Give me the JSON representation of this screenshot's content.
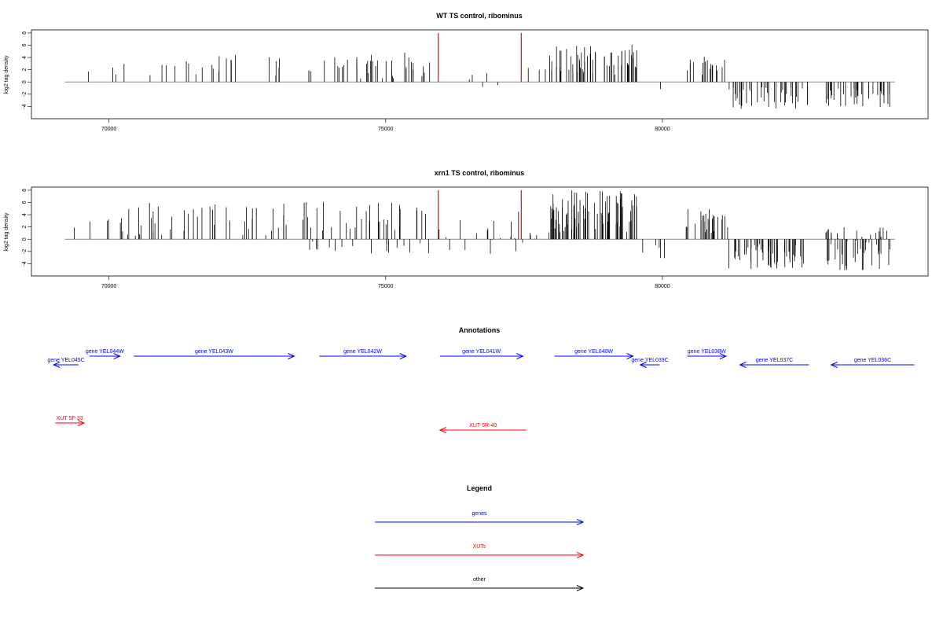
{
  "chart_data": [
    {
      "type": "bar",
      "title": "WT TS control, ribominus",
      "xlabel": "",
      "ylabel": "log2 tag density",
      "xlim": [
        68600,
        84800
      ],
      "ylim": [
        -6,
        8.5
      ],
      "x_ticks": [
        70000,
        75000,
        80000
      ],
      "x_tick_labels": [
        "70000",
        "75000",
        "80000"
      ],
      "y_ticks": [
        8,
        6,
        4,
        2,
        0,
        -2,
        -4
      ],
      "y_tick_labels": [
        "8",
        "6",
        "4",
        "2",
        "0",
        "-2",
        "-4"
      ],
      "baseline": {
        "from": 69200,
        "to": 84200,
        "value": 0
      },
      "markers": [
        {
          "x": 75950,
          "value": 8,
          "color": "#ff0000"
        },
        {
          "x": 77450,
          "value": 8,
          "color": "#ff0000"
        }
      ],
      "bar_color": "#000000",
      "segments": [
        {
          "from": 69300,
          "to": 69800,
          "density": 0.012,
          "min": -2,
          "max": 5
        },
        {
          "from": 69800,
          "to": 71200,
          "density": 0.025,
          "min": 0.5,
          "max": 3.5
        },
        {
          "from": 71200,
          "to": 73350,
          "density": 0.04,
          "min": 0.5,
          "max": 4.5
        },
        {
          "from": 73600,
          "to": 75800,
          "density": 0.09,
          "min": 0.5,
          "max": 4.8
        },
        {
          "from": 75800,
          "to": 77950,
          "density": 0.018,
          "min": -2.2,
          "max": 2.8
        },
        {
          "from": 77950,
          "to": 79550,
          "density": 0.18,
          "min": 1,
          "max": 6.2
        },
        {
          "from": 79650,
          "to": 80000,
          "density": 0.01,
          "min": -2.4,
          "max": -0.8
        },
        {
          "from": 80420,
          "to": 81130,
          "density": 0.12,
          "min": 1,
          "max": 4.2
        },
        {
          "from": 81200,
          "to": 82650,
          "density": 0.14,
          "min": -4.4,
          "max": -0.8
        },
        {
          "from": 82950,
          "to": 84150,
          "density": 0.14,
          "min": -4.2,
          "max": -0.8
        }
      ]
    },
    {
      "type": "bar",
      "title": "xrn1 TS control, ribominus",
      "xlabel": "",
      "ylabel": "log2 tag density",
      "xlim": [
        68600,
        84800
      ],
      "ylim": [
        -6,
        8.5
      ],
      "x_ticks": [
        70000,
        75000,
        80000
      ],
      "x_tick_labels": [
        "70000",
        "75000",
        "80000"
      ],
      "y_ticks": [
        8,
        6,
        4,
        2,
        0,
        -2,
        -4
      ],
      "y_tick_labels": [
        "8",
        "6",
        "4",
        "2",
        "0",
        "-2",
        "-4"
      ],
      "baseline": {
        "from": 69200,
        "to": 84200,
        "value": 0
      },
      "markers": [
        {
          "x": 75950,
          "value": 8,
          "color": "#ff0000"
        },
        {
          "x": 77450,
          "value": 8,
          "color": "#ff0000"
        }
      ],
      "bar_color": "#000000",
      "segments": [
        {
          "from": 69300,
          "to": 69650,
          "density": 0.02,
          "min": -1,
          "max": 2
        },
        {
          "from": 69650,
          "to": 71200,
          "density": 0.07,
          "min": 0.5,
          "max": 6.3
        },
        {
          "from": 71200,
          "to": 73400,
          "density": 0.06,
          "min": 0.5,
          "max": 5.8
        },
        {
          "from": 73500,
          "to": 75800,
          "density": 0.11,
          "min": -2.4,
          "max": 6.2
        },
        {
          "from": 75800,
          "to": 77950,
          "density": 0.05,
          "min": -2.8,
          "max": 5
        },
        {
          "from": 77950,
          "to": 79600,
          "density": 0.24,
          "min": 1,
          "max": 8
        },
        {
          "from": 79600,
          "to": 80050,
          "density": 0.05,
          "min": -3.2,
          "max": -0.8
        },
        {
          "from": 80400,
          "to": 81200,
          "density": 0.16,
          "min": 1,
          "max": 5.2
        },
        {
          "from": 81200,
          "to": 82600,
          "density": 0.18,
          "min": -5,
          "max": -0.8
        },
        {
          "from": 82950,
          "to": 84150,
          "density": 0.22,
          "min": -5.5,
          "max": 2
        }
      ]
    }
  ],
  "annotations": {
    "title": "Annotations",
    "genes": [
      {
        "label": "gene YEL045C",
        "from": 69450,
        "to": 69000,
        "row": 2
      },
      {
        "label": "gene YEL044W",
        "from": 69650,
        "to": 70200,
        "row": 1
      },
      {
        "label": "gene YEL043W",
        "from": 70450,
        "to": 73350,
        "row": 1
      },
      {
        "label": "gene YEL042W",
        "from": 73800,
        "to": 75370,
        "row": 1
      },
      {
        "label": "gene YEL041W",
        "from": 75980,
        "to": 77480,
        "row": 1
      },
      {
        "label": "gene YEL040W",
        "from": 78050,
        "to": 79470,
        "row": 1
      },
      {
        "label": "gene YEL039C",
        "from": 79950,
        "to": 79600,
        "row": 2
      },
      {
        "label": "gene YEL038W",
        "from": 80450,
        "to": 81150,
        "row": 1
      },
      {
        "label": "gene YEL037C",
        "from": 82650,
        "to": 81400,
        "row": 2
      },
      {
        "label": "gene YEL036C",
        "from": 84550,
        "to": 83050,
        "row": 2
      }
    ],
    "xuts": [
      {
        "label": "XUT 5F-33",
        "from": 69030,
        "to": 69550,
        "row": 3
      },
      {
        "label": "XUT 5R-40",
        "from": 77540,
        "to": 75980,
        "row": 4
      }
    ]
  },
  "legend": {
    "title": "Legend",
    "items": [
      {
        "label": "genes",
        "color": "#0000ff"
      },
      {
        "label": "XUTs",
        "color": "#ff0000"
      },
      {
        "label": "other",
        "color": "#000000"
      }
    ]
  },
  "colors": {
    "gene": "#0000ff",
    "xut": "#ff0000",
    "other": "#000000",
    "baseline": "#888888",
    "frame": "#000000"
  }
}
